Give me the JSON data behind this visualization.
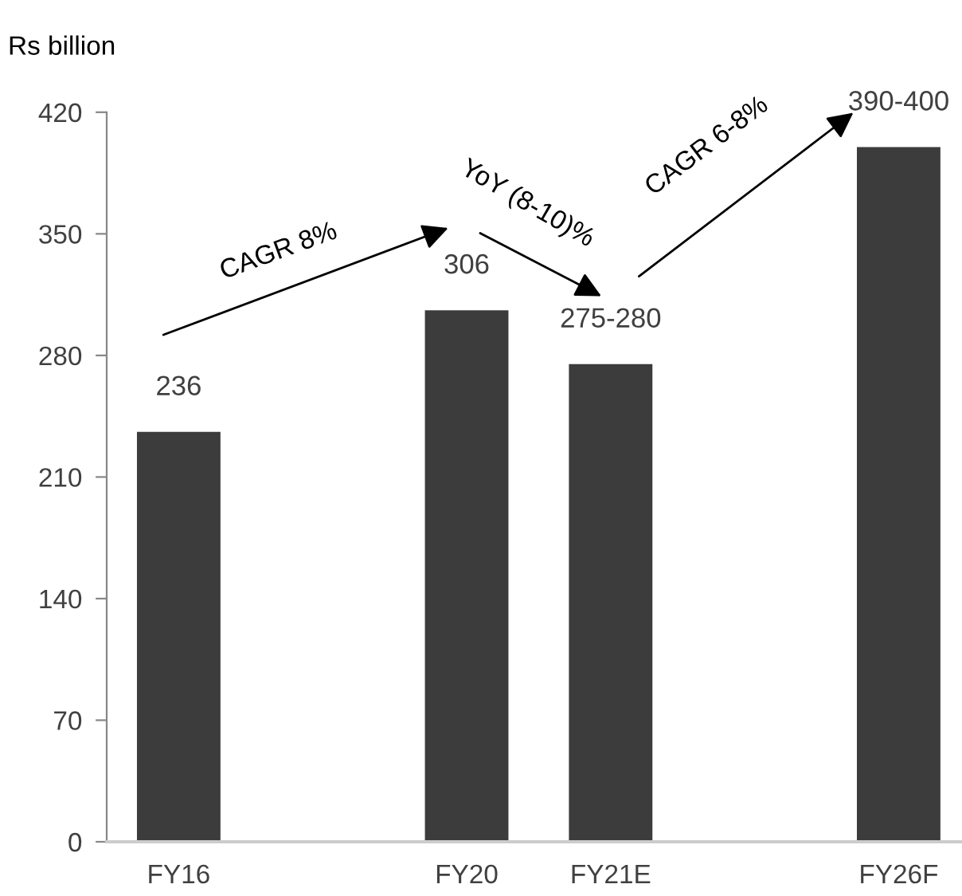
{
  "chart_data": {
    "type": "bar",
    "ylabel": "Rs billion",
    "categories": [
      "FY16",
      null,
      "FY20",
      "FY21E",
      null,
      "FY26F"
    ],
    "values": [
      236,
      null,
      306,
      275,
      null,
      400
    ],
    "value_labels": [
      "236",
      null,
      "306",
      "275-280",
      null,
      "390-400"
    ],
    "color": "#3c3c3c",
    "ylim": [
      0,
      420
    ],
    "yticks": [
      0,
      70,
      140,
      210,
      280,
      350,
      420
    ],
    "annotations": [
      "CAGR 8%",
      "YoY (8-10)%",
      "CAGR 6-8%"
    ],
    "grid": false
  }
}
